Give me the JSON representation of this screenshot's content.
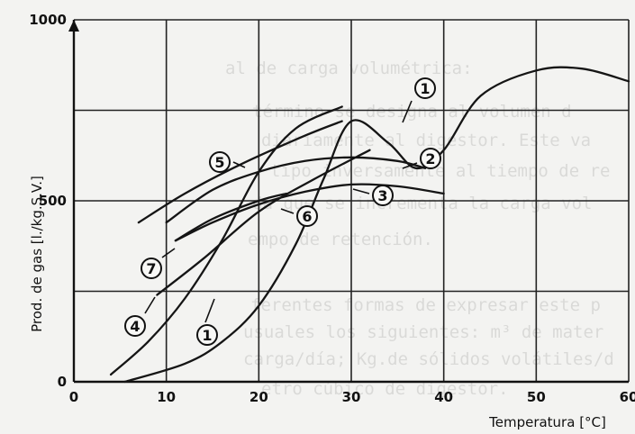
{
  "chart_data": {
    "type": "line",
    "xlabel": "Temperatura [°C]",
    "ylabel": "Prod. de gas [l./kg.S.V.]",
    "xlim": [
      0,
      60
    ],
    "ylim": [
      0,
      1000
    ],
    "x_ticks": [
      "0",
      "10",
      "20",
      "30",
      "40",
      "50",
      "60"
    ],
    "y_ticks": [
      "0",
      "500",
      "1000"
    ],
    "grid": true,
    "series": [
      {
        "name": "1",
        "points": [
          [
            5.5,
            0
          ],
          [
            12,
            50
          ],
          [
            16,
            110
          ],
          [
            20,
            210
          ],
          [
            24,
            380
          ],
          [
            27,
            560
          ],
          [
            30,
            720
          ],
          [
            34,
            660
          ],
          [
            37,
            590
          ],
          [
            40,
            640
          ],
          [
            44,
            790
          ],
          [
            50,
            860
          ],
          [
            55,
            865
          ],
          [
            60,
            830
          ]
        ]
      },
      {
        "name": "2",
        "points": [
          [
            10,
            440
          ],
          [
            15,
            530
          ],
          [
            20,
            580
          ],
          [
            25,
            610
          ],
          [
            30,
            620
          ],
          [
            35,
            610
          ],
          [
            38,
            590
          ]
        ]
      },
      {
        "name": "3",
        "points": [
          [
            11,
            390
          ],
          [
            15,
            440
          ],
          [
            20,
            490
          ],
          [
            25,
            525
          ],
          [
            30,
            545
          ],
          [
            35,
            540
          ],
          [
            40,
            520
          ]
        ]
      },
      {
        "name": "4",
        "points": [
          [
            4,
            20
          ],
          [
            8,
            110
          ],
          [
            12,
            230
          ],
          [
            16,
            390
          ],
          [
            20,
            580
          ],
          [
            24,
            700
          ],
          [
            29,
            760
          ]
        ]
      },
      {
        "name": "5",
        "points": [
          [
            7,
            440
          ],
          [
            12,
            520
          ],
          [
            18,
            600
          ],
          [
            25,
            680
          ],
          [
            29,
            720
          ]
        ]
      },
      {
        "name": "6",
        "points": [
          [
            11,
            390
          ],
          [
            15,
            450
          ],
          [
            20,
            500
          ],
          [
            23,
            520
          ]
        ]
      },
      {
        "name": "7",
        "points": [
          [
            9,
            240
          ],
          [
            14,
            340
          ],
          [
            20,
            470
          ],
          [
            26,
            560
          ],
          [
            32,
            640
          ]
        ]
      }
    ],
    "labels": [
      "1",
      "1",
      "2",
      "3",
      "4",
      "5",
      "6",
      "7"
    ]
  },
  "background_text": [
    "al de carga volumétrica:",
    "término se designa al volumen d",
    "diariamente al digestor. Este va",
    "tipo inversamente al tiempo de re",
    "da que se incrementa la carga vol",
    "empo de retención.",
    "ferentes formas de expresar este p",
    "usuales los siguientes: m³ de mater",
    "carga/día; Kg.de sólidos volátiles/d",
    "etro cúbico de digestor."
  ]
}
